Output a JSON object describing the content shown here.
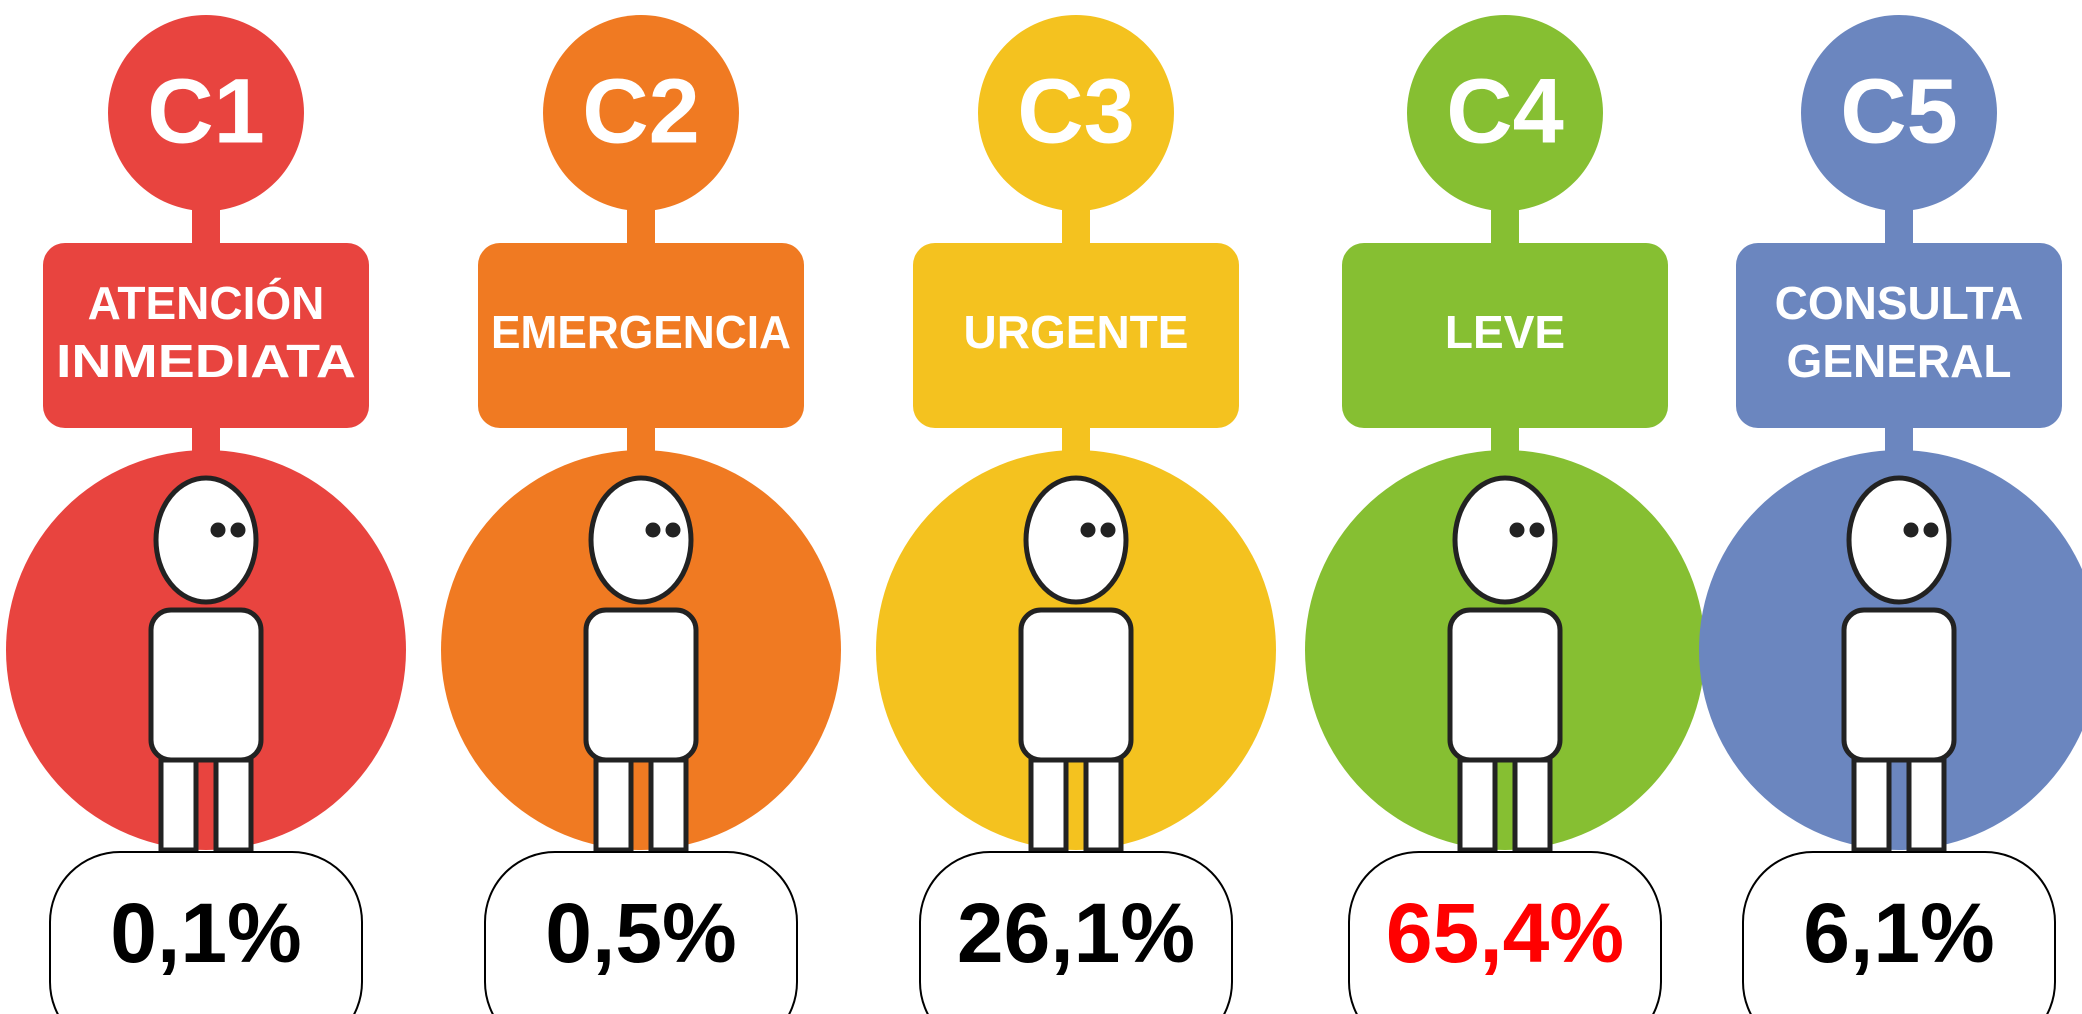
{
  "items": [
    {
      "code": "C1",
      "label": [
        "ATENCIÓN",
        "INMEDIATA"
      ],
      "percentage": "0,1%",
      "color": "#e8443f",
      "percentage_color": "#000000"
    },
    {
      "code": "C2",
      "label": [
        "EMERGENCIA"
      ],
      "percentage": "0,5%",
      "color": "#f07a22",
      "percentage_color": "#000000"
    },
    {
      "code": "C3",
      "label": [
        "URGENTE"
      ],
      "percentage": "26,1%",
      "color": "#f4c21f",
      "percentage_color": "#000000"
    },
    {
      "code": "C4",
      "label": [
        "LEVE"
      ],
      "percentage": "65,4%",
      "color": "#86bf32",
      "percentage_color": "#ff0000"
    },
    {
      "code": "C5",
      "label": [
        "CONSULTA",
        "GENERAL"
      ],
      "percentage": "6,1%",
      "color": "#6b86bf",
      "percentage_color": "#000000"
    }
  ]
}
